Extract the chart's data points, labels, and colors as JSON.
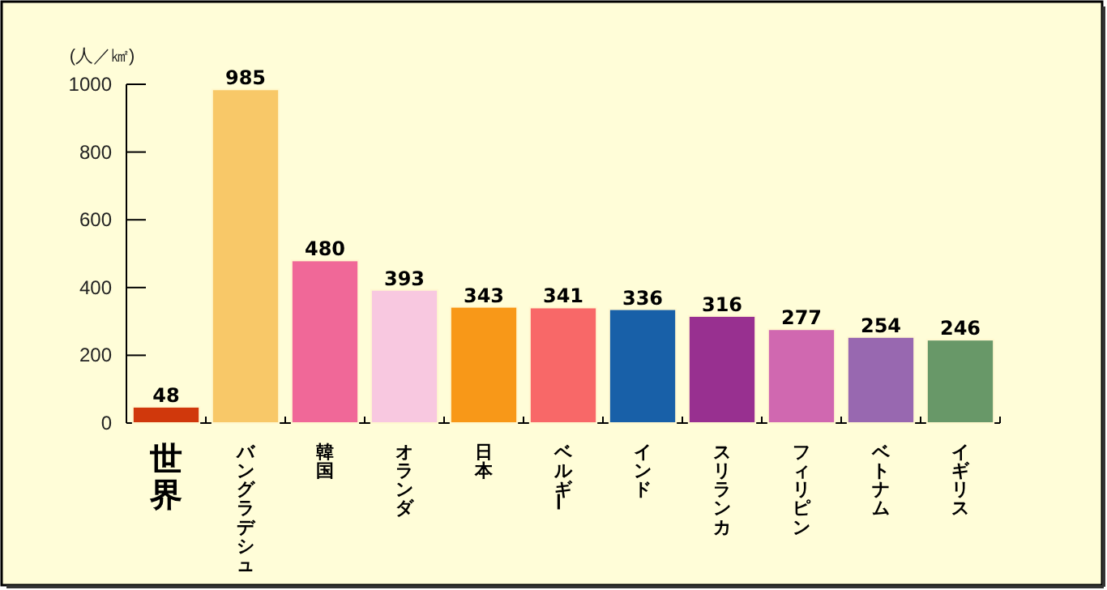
{
  "chart_data": {
    "type": "bar",
    "ylabel": "(人／㎢)",
    "categories": [
      "世界",
      "バングラデシュ",
      "韓国",
      "オランダ",
      "日本",
      "ベルギー",
      "インド",
      "スリランカ",
      "フィリピン",
      "ベトナム",
      "イギリス"
    ],
    "values": [
      48,
      985,
      480,
      393,
      343,
      341,
      336,
      316,
      277,
      254,
      246
    ],
    "colors": [
      "#d0380c",
      "#f8c868",
      "#f06898",
      "#f8c8e0",
      "#f89818",
      "#f86868",
      "#1860a8",
      "#983090",
      "#d068b0",
      "#9868b0",
      "#689868"
    ],
    "ylim": [
      0,
      1000
    ],
    "yticks": [
      0,
      200,
      400,
      600,
      800,
      1000
    ],
    "data_labels": true
  }
}
